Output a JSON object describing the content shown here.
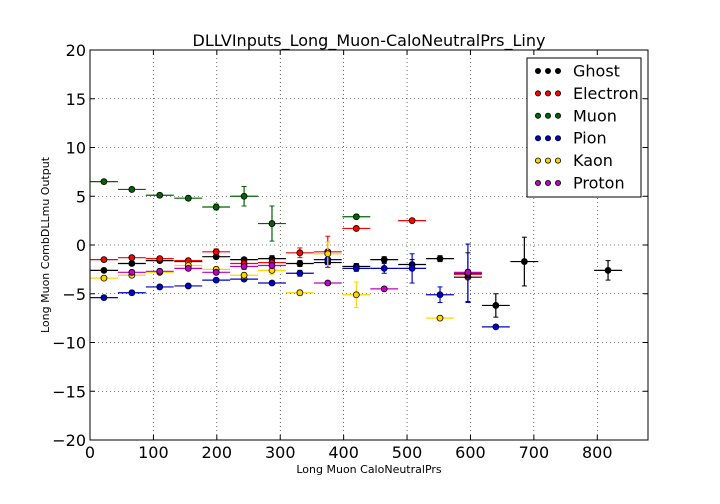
{
  "chart_data": {
    "type": "scatter",
    "title": "DLLVInputs_Long_Muon-CaloNeutralPrs_Liny",
    "xlabel": "Long Muon CaloNeutralPrs",
    "ylabel": "Long Muon CombDLLmu Output",
    "xlim": [
      0,
      880
    ],
    "ylim": [
      -20,
      20
    ],
    "xticks": [
      0,
      100,
      200,
      300,
      400,
      500,
      600,
      700,
      800
    ],
    "yticks": [
      -20,
      -15,
      -10,
      -5,
      0,
      5,
      10,
      15,
      20
    ],
    "xtick_labels": [
      "0",
      "100",
      "200",
      "300",
      "400",
      "500",
      "600",
      "700",
      "800"
    ],
    "ytick_labels": [
      "−20",
      "−15",
      "−10",
      "−5",
      "0",
      "5",
      "10",
      "15",
      "20"
    ],
    "grid": true,
    "legend_position": "top-right",
    "series": [
      {
        "name": "Ghost",
        "color": "#000000",
        "points": [
          {
            "x": 22,
            "y": -2.6,
            "xerr": 22,
            "yerr": 0.2
          },
          {
            "x": 66,
            "y": -1.9,
            "xerr": 22,
            "yerr": 0.2
          },
          {
            "x": 110,
            "y": -1.6,
            "xerr": 22,
            "yerr": 0.2
          },
          {
            "x": 155,
            "y": -1.7,
            "xerr": 22,
            "yerr": 0.2
          },
          {
            "x": 199,
            "y": -1.2,
            "xerr": 22,
            "yerr": 0.2
          },
          {
            "x": 243,
            "y": -1.5,
            "xerr": 22,
            "yerr": 0.2
          },
          {
            "x": 287,
            "y": -1.4,
            "xerr": 22,
            "yerr": 0.3
          },
          {
            "x": 331,
            "y": -1.9,
            "xerr": 22,
            "yerr": 0.3
          },
          {
            "x": 375,
            "y": -1.8,
            "xerr": 22,
            "yerr": 0.5
          },
          {
            "x": 420,
            "y": -2.2,
            "xerr": 22,
            "yerr": 0.3
          },
          {
            "x": 464,
            "y": -1.5,
            "xerr": 22,
            "yerr": 0.3
          },
          {
            "x": 508,
            "y": -2.0,
            "xerr": 22,
            "yerr": 0.5
          },
          {
            "x": 552,
            "y": -1.4,
            "xerr": 22,
            "yerr": 0.3
          },
          {
            "x": 596,
            "y": -3.3,
            "xerr": 22,
            "yerr": 2.5
          },
          {
            "x": 640,
            "y": -6.2,
            "xerr": 22,
            "yerr": 1.2
          },
          {
            "x": 685,
            "y": -1.7,
            "xerr": 22,
            "yerr": 2.5
          },
          {
            "x": 817,
            "y": -2.6,
            "xerr": 22,
            "yerr": 1.0
          }
        ]
      },
      {
        "name": "Electron",
        "color": "#ff0000",
        "points": [
          {
            "x": 22,
            "y": -1.5,
            "xerr": 22,
            "yerr": 0.2
          },
          {
            "x": 66,
            "y": -1.3,
            "xerr": 22,
            "yerr": 0.2
          },
          {
            "x": 110,
            "y": -1.4,
            "xerr": 22,
            "yerr": 0.2
          },
          {
            "x": 155,
            "y": -1.6,
            "xerr": 22,
            "yerr": 0.2
          },
          {
            "x": 199,
            "y": -0.7,
            "xerr": 22,
            "yerr": 0.3
          },
          {
            "x": 243,
            "y": -1.9,
            "xerr": 22,
            "yerr": 0.3
          },
          {
            "x": 287,
            "y": -1.8,
            "xerr": 22,
            "yerr": 0.3
          },
          {
            "x": 331,
            "y": -0.8,
            "xerr": 22,
            "yerr": 0.5
          },
          {
            "x": 375,
            "y": -0.7,
            "xerr": 22,
            "yerr": 1.6
          },
          {
            "x": 420,
            "y": 1.7,
            "xerr": 22,
            "yerr": 0.2
          },
          {
            "x": 508,
            "y": 2.5,
            "xerr": 22,
            "yerr": 0.2
          },
          {
            "x": 596,
            "y": -3.0,
            "xerr": 22,
            "yerr": 0.5
          }
        ]
      },
      {
        "name": "Muon",
        "color": "#006400",
        "points": [
          {
            "x": 22,
            "y": 6.5,
            "xerr": 22,
            "yerr": 0.2
          },
          {
            "x": 66,
            "y": 5.7,
            "xerr": 22,
            "yerr": 0.2
          },
          {
            "x": 110,
            "y": 5.1,
            "xerr": 22,
            "yerr": 0.2
          },
          {
            "x": 155,
            "y": 4.8,
            "xerr": 22,
            "yerr": 0.2
          },
          {
            "x": 199,
            "y": 3.9,
            "xerr": 22,
            "yerr": 0.3
          },
          {
            "x": 243,
            "y": 5.0,
            "xerr": 22,
            "yerr": 1.0
          },
          {
            "x": 287,
            "y": 2.2,
            "xerr": 22,
            "yerr": 1.8
          },
          {
            "x": 420,
            "y": 2.9,
            "xerr": 22,
            "yerr": 0.2
          }
        ]
      },
      {
        "name": "Pion",
        "color": "#0000cd",
        "points": [
          {
            "x": 22,
            "y": -5.4,
            "xerr": 22,
            "yerr": 0.2
          },
          {
            "x": 66,
            "y": -4.9,
            "xerr": 22,
            "yerr": 0.2
          },
          {
            "x": 110,
            "y": -4.3,
            "xerr": 22,
            "yerr": 0.2
          },
          {
            "x": 155,
            "y": -4.2,
            "xerr": 22,
            "yerr": 0.2
          },
          {
            "x": 199,
            "y": -3.6,
            "xerr": 22,
            "yerr": 0.2
          },
          {
            "x": 243,
            "y": -3.5,
            "xerr": 22,
            "yerr": 0.2
          },
          {
            "x": 287,
            "y": -3.9,
            "xerr": 22,
            "yerr": 0.2
          },
          {
            "x": 331,
            "y": -2.9,
            "xerr": 22,
            "yerr": 0.3
          },
          {
            "x": 375,
            "y": -1.5,
            "xerr": 22,
            "yerr": 0.5
          },
          {
            "x": 420,
            "y": -2.4,
            "xerr": 22,
            "yerr": 0.3
          },
          {
            "x": 464,
            "y": -2.4,
            "xerr": 22,
            "yerr": 0.5
          },
          {
            "x": 508,
            "y": -2.4,
            "xerr": 22,
            "yerr": 1.5
          },
          {
            "x": 552,
            "y": -5.1,
            "xerr": 22,
            "yerr": 0.8
          },
          {
            "x": 596,
            "y": -2.9,
            "xerr": 22,
            "yerr": 3.0
          },
          {
            "x": 640,
            "y": -8.4,
            "xerr": 22,
            "yerr": 0.2
          }
        ]
      },
      {
        "name": "Kaon",
        "color": "#ffd700",
        "points": [
          {
            "x": 22,
            "y": -3.4,
            "xerr": 22,
            "yerr": 0.2
          },
          {
            "x": 66,
            "y": -3.1,
            "xerr": 22,
            "yerr": 0.2
          },
          {
            "x": 110,
            "y": -2.8,
            "xerr": 22,
            "yerr": 0.2
          },
          {
            "x": 155,
            "y": -2.1,
            "xerr": 22,
            "yerr": 0.3
          },
          {
            "x": 199,
            "y": -2.5,
            "xerr": 22,
            "yerr": 0.3
          },
          {
            "x": 243,
            "y": -3.1,
            "xerr": 22,
            "yerr": 0.3
          },
          {
            "x": 287,
            "y": -2.6,
            "xerr": 22,
            "yerr": 0.4
          },
          {
            "x": 331,
            "y": -4.9,
            "xerr": 22,
            "yerr": 0.3
          },
          {
            "x": 375,
            "y": -0.9,
            "xerr": 22,
            "yerr": 1.2
          },
          {
            "x": 420,
            "y": -5.1,
            "xerr": 22,
            "yerr": 1.3
          },
          {
            "x": 552,
            "y": -7.5,
            "xerr": 22,
            "yerr": 0.2
          }
        ]
      },
      {
        "name": "Proton",
        "color": "#c000c0",
        "points": [
          {
            "x": 66,
            "y": -2.8,
            "xerr": 22,
            "yerr": 0.2
          },
          {
            "x": 110,
            "y": -2.7,
            "xerr": 22,
            "yerr": 0.2
          },
          {
            "x": 155,
            "y": -2.4,
            "xerr": 22,
            "yerr": 0.2
          },
          {
            "x": 199,
            "y": -2.8,
            "xerr": 22,
            "yerr": 0.2
          },
          {
            "x": 243,
            "y": -2.2,
            "xerr": 22,
            "yerr": 0.3
          },
          {
            "x": 287,
            "y": -2.1,
            "xerr": 22,
            "yerr": 0.3
          },
          {
            "x": 375,
            "y": -3.9,
            "xerr": 22,
            "yerr": 0.2
          },
          {
            "x": 464,
            "y": -4.5,
            "xerr": 22,
            "yerr": 0.2
          },
          {
            "x": 596,
            "y": -2.8,
            "xerr": 22,
            "yerr": 0.2
          }
        ]
      }
    ]
  }
}
